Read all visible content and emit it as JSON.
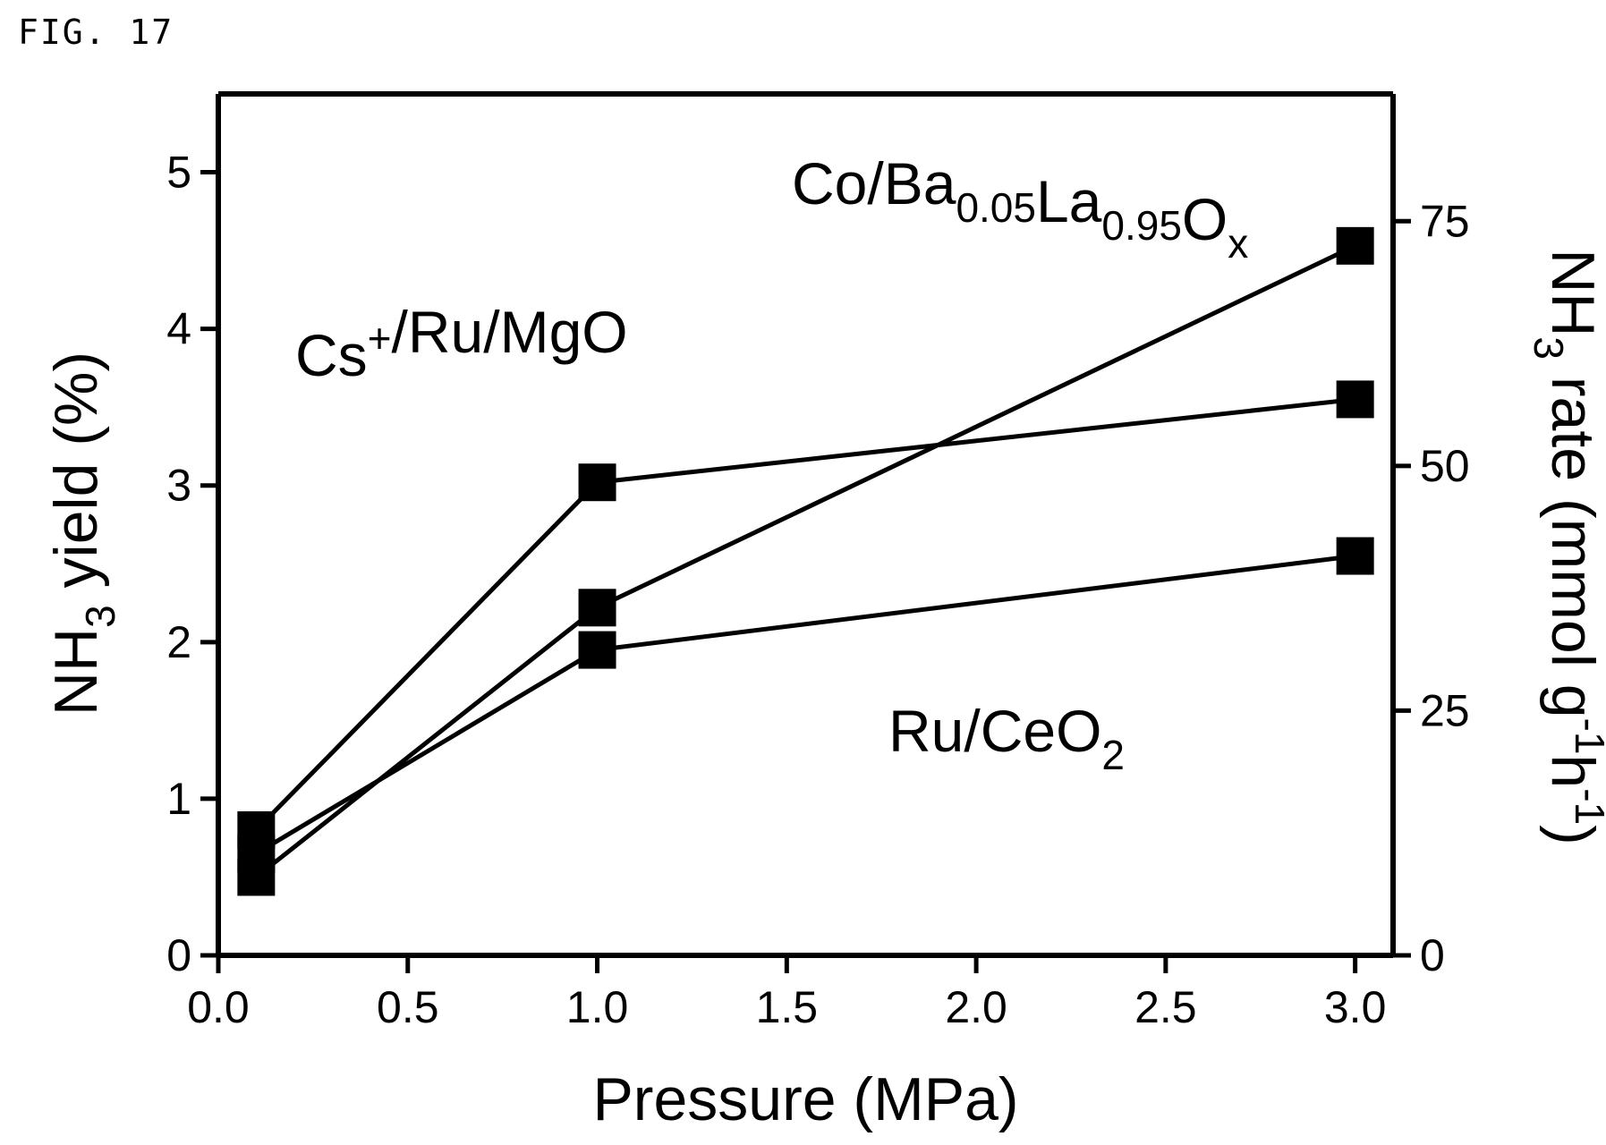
{
  "figure_label": "FIG. 17",
  "chart_data": {
    "type": "line",
    "xlabel": "Pressure (MPa)",
    "ylabel": {
      "prefix": "NH",
      "sub": "3",
      "suffix": " yield (%)"
    },
    "y2label": {
      "prefix": "NH",
      "sub": "3",
      "mid": " rate (mmol g",
      "sup1": "-1",
      "mid2": "h",
      "sup2": "-1",
      "suffix": ")"
    },
    "xlim": [
      0.0,
      3.1
    ],
    "ylim": [
      0,
      5.5
    ],
    "y2lim": [
      0,
      88
    ],
    "xticks": [
      "0.0",
      "0.5",
      "1.0",
      "1.5",
      "2.0",
      "2.5",
      "3.0"
    ],
    "xtick_values": [
      0.0,
      0.5,
      1.0,
      1.5,
      2.0,
      2.5,
      3.0
    ],
    "yticks": [
      "0",
      "1",
      "2",
      "3",
      "4",
      "5"
    ],
    "ytick_values": [
      0,
      1,
      2,
      3,
      4,
      5
    ],
    "y2ticks": [
      "0",
      "25",
      "50",
      "75"
    ],
    "y2tick_values": [
      0,
      25,
      50,
      75
    ],
    "series": [
      {
        "x": [
          0.1,
          1.0,
          3.0
        ],
        "values": [
          0.8,
          3.02,
          3.55
        ]
      },
      {
        "x": [
          0.1,
          1.0,
          3.0
        ],
        "values": [
          0.5,
          2.22,
          4.53
        ]
      },
      {
        "x": [
          0.1,
          1.0,
          3.0
        ],
        "values": [
          0.65,
          1.95,
          2.55
        ]
      }
    ],
    "annotations": [
      {
        "id": "cs-ru-mgo",
        "parts": [
          {
            "t": "Cs"
          },
          {
            "t": "+",
            "s": "sup"
          },
          {
            "t": "/Ru/MgO"
          }
        ]
      },
      {
        "id": "co-ba-la",
        "parts": [
          {
            "t": "Co/Ba"
          },
          {
            "t": "0.05",
            "s": "sub"
          },
          {
            "t": "La"
          },
          {
            "t": "0.95",
            "s": "sub"
          },
          {
            "t": "O"
          },
          {
            "t": "x",
            "s": "sub"
          }
        ]
      },
      {
        "id": "ru-ceo2",
        "parts": [
          {
            "t": "Ru/CeO"
          },
          {
            "t": "2",
            "s": "sub"
          }
        ]
      }
    ],
    "marker": "square",
    "colors": {
      "line": "#000000",
      "marker": "#000000"
    },
    "grid": false
  }
}
